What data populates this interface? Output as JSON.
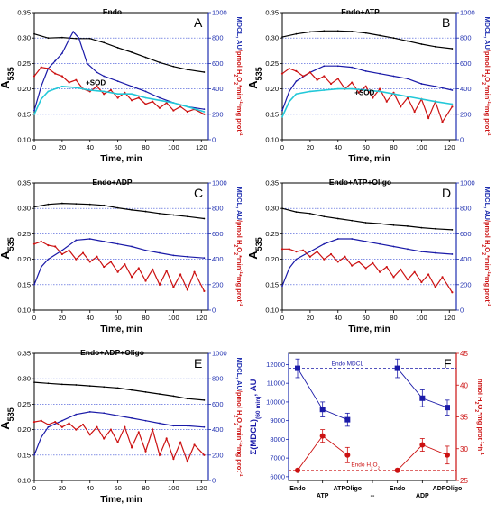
{
  "colors": {
    "black": "#000000",
    "mdcl_blue": "#1a1aa8",
    "h2o2_red": "#cc1111",
    "sod_cyan": "#22c8d8",
    "grid_blue": "#3b4fd6",
    "axis_blue": "#1f2fb0"
  },
  "chart_data": [
    {
      "panel": "A",
      "title": "Endo",
      "type": "line",
      "xlabel": "Time, min",
      "ylabel": "A535",
      "y2label": "MDCL, AU/pmol H2O2*min-1*mg prot-1",
      "xlim": [
        0,
        125
      ],
      "ylim": [
        0.1,
        0.35
      ],
      "y2lim": [
        0,
        1000
      ],
      "xticks": [
        0,
        20,
        40,
        60,
        80,
        100,
        120
      ],
      "yticks": [
        0.1,
        0.15,
        0.2,
        0.25,
        0.3,
        0.35
      ],
      "y2ticks": [
        0,
        200,
        400,
        600,
        800,
        1000
      ],
      "grid_y2": [
        200,
        400,
        600,
        800
      ],
      "annotation": "+SOD",
      "series": [
        {
          "name": "",
          "axis": "left",
          "color_key": "black",
          "x": [
            0,
            10,
            20,
            30,
            40,
            50,
            60,
            70,
            80,
            90,
            100,
            110,
            122
          ],
          "y": [
            0.308,
            0.3,
            0.301,
            0.299,
            0.299,
            0.291,
            0.281,
            0.272,
            0.262,
            0.252,
            0.244,
            0.238,
            0.233
          ]
        },
        {
          "name": "",
          "axis": "right",
          "color_key": "mdcl_blue",
          "x": [
            0,
            5,
            10,
            15,
            20,
            25,
            28,
            32,
            38,
            45,
            50,
            60,
            70,
            80,
            90,
            100,
            110,
            122
          ],
          "y": [
            230,
            420,
            560,
            620,
            680,
            790,
            850,
            800,
            600,
            530,
            500,
            460,
            420,
            380,
            330,
            290,
            260,
            240
          ]
        },
        {
          "name": "",
          "axis": "right",
          "color_key": "h2o2_red",
          "x": [
            0,
            5,
            10,
            15,
            20,
            25,
            30,
            35,
            40,
            45,
            50,
            55,
            60,
            65,
            70,
            75,
            80,
            85,
            90,
            95,
            100,
            105,
            110,
            115,
            122
          ],
          "y": [
            500,
            570,
            560,
            520,
            500,
            450,
            470,
            400,
            380,
            420,
            360,
            390,
            330,
            370,
            310,
            330,
            280,
            300,
            250,
            290,
            230,
            260,
            220,
            240,
            200
          ]
        },
        {
          "name": "+SOD",
          "axis": "right",
          "color_key": "sod_cyan",
          "x": [
            0,
            5,
            10,
            20,
            30,
            40,
            50,
            60,
            70,
            80,
            90,
            100,
            110,
            122
          ],
          "y": [
            200,
            320,
            380,
            420,
            410,
            390,
            380,
            360,
            360,
            330,
            310,
            290,
            260,
            220
          ]
        }
      ]
    },
    {
      "panel": "B",
      "title": "Endo+ATP",
      "type": "line",
      "xlabel": "Time, min",
      "ylabel": "A535",
      "y2label": "MDCL, AU/pmol H2O2*min-1*mg prot-1",
      "xlim": [
        0,
        125
      ],
      "ylim": [
        0.1,
        0.35
      ],
      "y2lim": [
        0,
        1000
      ],
      "xticks": [
        0,
        20,
        40,
        60,
        80,
        100,
        120
      ],
      "yticks": [
        0.1,
        0.15,
        0.2,
        0.25,
        0.3,
        0.35
      ],
      "y2ticks": [
        0,
        200,
        400,
        600,
        800,
        1000
      ],
      "grid_y2": [
        200,
        400,
        600,
        800
      ],
      "annotation": "+SOD",
      "series": [
        {
          "name": "",
          "axis": "left",
          "color_key": "black",
          "x": [
            0,
            10,
            20,
            30,
            40,
            50,
            60,
            70,
            80,
            90,
            100,
            110,
            122
          ],
          "y": [
            0.302,
            0.308,
            0.312,
            0.314,
            0.314,
            0.313,
            0.31,
            0.305,
            0.3,
            0.294,
            0.288,
            0.283,
            0.279
          ]
        },
        {
          "name": "",
          "axis": "right",
          "color_key": "mdcl_blue",
          "x": [
            0,
            5,
            10,
            20,
            30,
            40,
            50,
            60,
            70,
            80,
            90,
            100,
            110,
            122
          ],
          "y": [
            230,
            380,
            460,
            530,
            580,
            580,
            570,
            540,
            520,
            500,
            480,
            440,
            420,
            390
          ]
        },
        {
          "name": "",
          "axis": "right",
          "color_key": "h2o2_red",
          "x": [
            0,
            5,
            10,
            15,
            20,
            25,
            30,
            35,
            40,
            45,
            50,
            55,
            60,
            65,
            70,
            75,
            80,
            85,
            90,
            95,
            100,
            105,
            110,
            115,
            122
          ],
          "y": [
            520,
            560,
            540,
            500,
            530,
            470,
            500,
            440,
            480,
            400,
            450,
            370,
            420,
            330,
            400,
            300,
            370,
            260,
            330,
            220,
            320,
            170,
            300,
            140,
            260
          ]
        },
        {
          "name": "+SOD",
          "axis": "right",
          "color_key": "sod_cyan",
          "x": [
            0,
            5,
            10,
            20,
            30,
            40,
            50,
            60,
            70,
            80,
            90,
            100,
            110,
            122
          ],
          "y": [
            180,
            300,
            360,
            380,
            390,
            400,
            400,
            390,
            380,
            360,
            340,
            320,
            300,
            280
          ]
        }
      ]
    },
    {
      "panel": "C",
      "title": "Endo+ADP",
      "type": "line",
      "xlabel": "Time, min",
      "ylabel": "A535",
      "y2label": "MDCL, AU/pmol H2O2*min-1*mg prot-1",
      "xlim": [
        0,
        125
      ],
      "ylim": [
        0.1,
        0.35
      ],
      "y2lim": [
        0,
        1000
      ],
      "xticks": [
        0,
        20,
        40,
        60,
        80,
        100,
        120
      ],
      "yticks": [
        0.1,
        0.15,
        0.2,
        0.25,
        0.3,
        0.35
      ],
      "y2ticks": [
        0,
        200,
        400,
        600,
        800,
        1000
      ],
      "grid_y2": [
        200,
        400,
        600,
        800
      ],
      "annotation": "",
      "series": [
        {
          "name": "",
          "axis": "left",
          "color_key": "black",
          "x": [
            0,
            10,
            20,
            30,
            40,
            50,
            60,
            70,
            80,
            90,
            100,
            110,
            122
          ],
          "y": [
            0.303,
            0.308,
            0.31,
            0.309,
            0.308,
            0.306,
            0.301,
            0.297,
            0.294,
            0.29,
            0.287,
            0.284,
            0.28
          ]
        },
        {
          "name": "",
          "axis": "right",
          "color_key": "mdcl_blue",
          "x": [
            0,
            5,
            10,
            20,
            30,
            40,
            50,
            60,
            70,
            80,
            90,
            100,
            110,
            122
          ],
          "y": [
            200,
            340,
            400,
            470,
            550,
            560,
            540,
            520,
            500,
            470,
            450,
            430,
            420,
            410
          ]
        },
        {
          "name": "",
          "axis": "right",
          "color_key": "h2o2_red",
          "x": [
            0,
            5,
            10,
            15,
            20,
            25,
            30,
            35,
            40,
            45,
            50,
            55,
            60,
            65,
            70,
            75,
            80,
            85,
            90,
            95,
            100,
            105,
            110,
            115,
            122
          ],
          "y": [
            520,
            540,
            510,
            500,
            440,
            470,
            400,
            450,
            380,
            420,
            340,
            380,
            300,
            360,
            260,
            330,
            230,
            320,
            200,
            310,
            180,
            280,
            160,
            300,
            150
          ]
        }
      ]
    },
    {
      "panel": "D",
      "title": "Endo+ATP+Oligo",
      "type": "line",
      "xlabel": "Time, min",
      "ylabel": "A535",
      "y2label": "MDCL, AU/pmol H2O2*min-1*mg prot-1",
      "xlim": [
        0,
        125
      ],
      "ylim": [
        0.1,
        0.35
      ],
      "y2lim": [
        0,
        1000
      ],
      "xticks": [
        0,
        20,
        40,
        60,
        80,
        100,
        120
      ],
      "yticks": [
        0.1,
        0.15,
        0.2,
        0.25,
        0.3,
        0.35
      ],
      "y2ticks": [
        0,
        200,
        400,
        600,
        800,
        1000
      ],
      "grid_y2": [
        200,
        400,
        600,
        800
      ],
      "annotation": "",
      "series": [
        {
          "name": "",
          "axis": "left",
          "color_key": "black",
          "x": [
            0,
            10,
            20,
            30,
            40,
            50,
            60,
            70,
            80,
            90,
            100,
            110,
            122
          ],
          "y": [
            0.3,
            0.293,
            0.29,
            0.284,
            0.28,
            0.276,
            0.272,
            0.27,
            0.267,
            0.265,
            0.262,
            0.26,
            0.258
          ]
        },
        {
          "name": "",
          "axis": "right",
          "color_key": "mdcl_blue",
          "x": [
            0,
            5,
            10,
            20,
            30,
            40,
            50,
            60,
            70,
            80,
            90,
            100,
            110,
            122
          ],
          "y": [
            190,
            330,
            400,
            460,
            520,
            560,
            560,
            540,
            520,
            500,
            480,
            460,
            450,
            440
          ]
        },
        {
          "name": "",
          "axis": "right",
          "color_key": "h2o2_red",
          "x": [
            0,
            5,
            10,
            15,
            20,
            25,
            30,
            35,
            40,
            45,
            50,
            55,
            60,
            65,
            70,
            75,
            80,
            85,
            90,
            95,
            100,
            105,
            110,
            115,
            122
          ],
          "y": [
            480,
            480,
            460,
            470,
            420,
            460,
            400,
            440,
            380,
            420,
            350,
            380,
            330,
            370,
            300,
            340,
            260,
            320,
            240,
            300,
            220,
            280,
            180,
            260,
            140
          ]
        }
      ]
    },
    {
      "panel": "E",
      "title": "Endo+ADP+Oligo",
      "type": "line",
      "xlabel": "Time, min",
      "ylabel": "A535",
      "y2label": "MDCL, AU/pmol H2O2*min-1*mg prot-1",
      "xlim": [
        0,
        125
      ],
      "ylim": [
        0.1,
        0.35
      ],
      "y2lim": [
        0,
        1000
      ],
      "xticks": [
        0,
        20,
        40,
        60,
        80,
        100,
        120
      ],
      "yticks": [
        0.1,
        0.15,
        0.2,
        0.25,
        0.3,
        0.35
      ],
      "y2ticks": [
        0,
        200,
        400,
        600,
        800,
        1000
      ],
      "grid_y2": [
        200,
        400,
        600,
        800
      ],
      "annotation": "",
      "series": [
        {
          "name": "",
          "axis": "left",
          "color_key": "black",
          "x": [
            0,
            10,
            20,
            30,
            40,
            50,
            60,
            70,
            80,
            90,
            100,
            110,
            122
          ],
          "y": [
            0.293,
            0.291,
            0.289,
            0.288,
            0.286,
            0.284,
            0.282,
            0.278,
            0.274,
            0.27,
            0.266,
            0.261,
            0.258
          ]
        },
        {
          "name": "",
          "axis": "right",
          "color_key": "mdcl_blue",
          "x": [
            0,
            5,
            10,
            20,
            30,
            40,
            50,
            60,
            70,
            80,
            90,
            100,
            110,
            122
          ],
          "y": [
            200,
            340,
            420,
            470,
            520,
            540,
            530,
            510,
            490,
            470,
            450,
            430,
            430,
            420
          ]
        },
        {
          "name": "",
          "axis": "right",
          "color_key": "h2o2_red",
          "x": [
            0,
            5,
            10,
            15,
            20,
            25,
            30,
            35,
            40,
            45,
            50,
            55,
            60,
            65,
            70,
            75,
            80,
            85,
            90,
            95,
            100,
            105,
            110,
            115,
            122
          ],
          "y": [
            460,
            470,
            440,
            460,
            420,
            450,
            400,
            440,
            360,
            420,
            330,
            400,
            300,
            420,
            260,
            380,
            230,
            400,
            200,
            330,
            170,
            300,
            150,
            280,
            200
          ]
        }
      ]
    },
    {
      "panel": "F",
      "type": "scatter",
      "xlabel": "",
      "ylabel": "Σ(MDCL)(60 min), AU",
      "y2label": "nmol H2O2*mg prot-1*h-1",
      "categories": [
        "Endo",
        "ATP",
        "ATPOligo",
        "--",
        "Endo",
        "ADP",
        "ADPOligo"
      ],
      "ylim": [
        5800,
        12600
      ],
      "y2lim": [
        25,
        45
      ],
      "yticks": [
        6000,
        7000,
        8000,
        9000,
        10000,
        11000,
        12000
      ],
      "y2ticks": [
        25,
        30,
        35,
        40,
        45
      ],
      "annotations": [
        "Endo MDCL",
        "Endo H2O2"
      ],
      "reference_lines": [
        {
          "axis": "left",
          "value": 11800
        },
        {
          "axis": "right",
          "value": 26.6
        }
      ],
      "series": [
        {
          "name": "",
          "axis": "left",
          "color_key": "mdcl_blue",
          "groups": [
            [
              0,
              1,
              2
            ],
            [
              4,
              5,
              6
            ]
          ],
          "values": [
            11800,
            9600,
            9050,
            null,
            11800,
            10200,
            9700
          ],
          "errors": [
            500,
            400,
            350,
            null,
            500,
            450,
            400
          ]
        },
        {
          "name": "",
          "axis": "right",
          "color_key": "h2o2_red",
          "groups": [
            [
              0,
              1,
              2
            ],
            [
              4,
              5,
              6
            ]
          ],
          "values": [
            26.6,
            32.0,
            29.0,
            null,
            26.6,
            30.6,
            29.0
          ],
          "errors": [
            0,
            1.0,
            1.2,
            null,
            0,
            1.0,
            1.4
          ]
        }
      ]
    }
  ]
}
